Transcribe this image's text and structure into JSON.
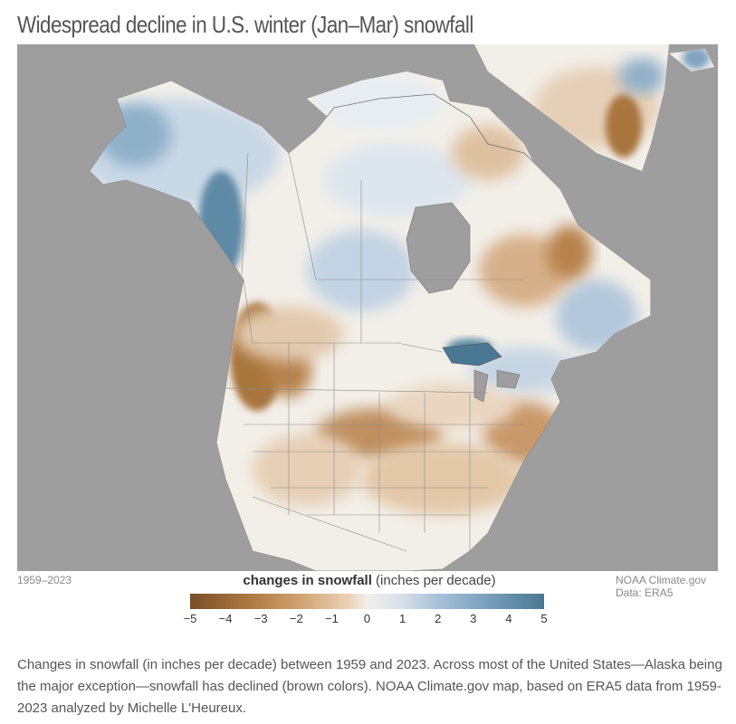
{
  "title": "Widespread decline in U.S. winter (Jan–Mar) snowfall",
  "map": {
    "ocean_color": "#9e9e9e",
    "decline_color": "#a8743d",
    "increase_color": "#4a7893",
    "neutral_color": "#f2efe9"
  },
  "period": "1959–2023",
  "legend": {
    "title_bold": "changes in snowfall",
    "title_rest": " (inches per decade)",
    "ticks": [
      "−5",
      "−4",
      "−3",
      "−2",
      "−1",
      "0",
      "1",
      "2",
      "3",
      "4",
      "5"
    ]
  },
  "credit": {
    "line1": "NOAA Climate.gov",
    "line2": "Data: ERA5"
  },
  "caption": "Changes in snowfall (in inches per decade) between 1959 and 2023. Across most of the United States—Alaska being the major exception—snowfall has declined (brown colors). NOAA Climate.gov map, based on ERA5 data from 1959-2023 analyzed by Michelle L'Heureux."
}
